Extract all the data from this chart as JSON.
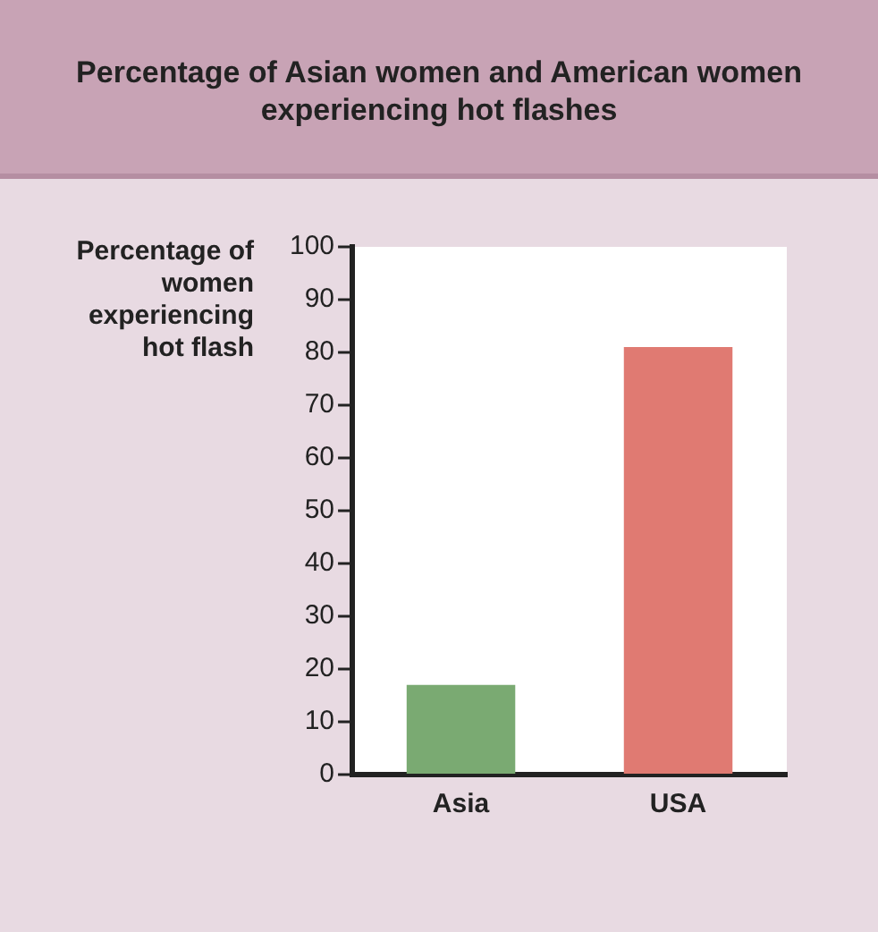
{
  "chart_data": {
    "type": "bar",
    "title": "Percentage of Asian women and American women experiencing hot flashes",
    "ylabel": "Percentage of women experiencing hot flash",
    "categories": [
      "Asia",
      "USA"
    ],
    "values": [
      17,
      81
    ],
    "colors": [
      "#7aaa72",
      "#e07a72"
    ],
    "ylim": [
      0,
      100
    ],
    "yticks": [
      0,
      10,
      20,
      30,
      40,
      50,
      60,
      70,
      80,
      90,
      100
    ],
    "grid": false,
    "legend": false
  }
}
